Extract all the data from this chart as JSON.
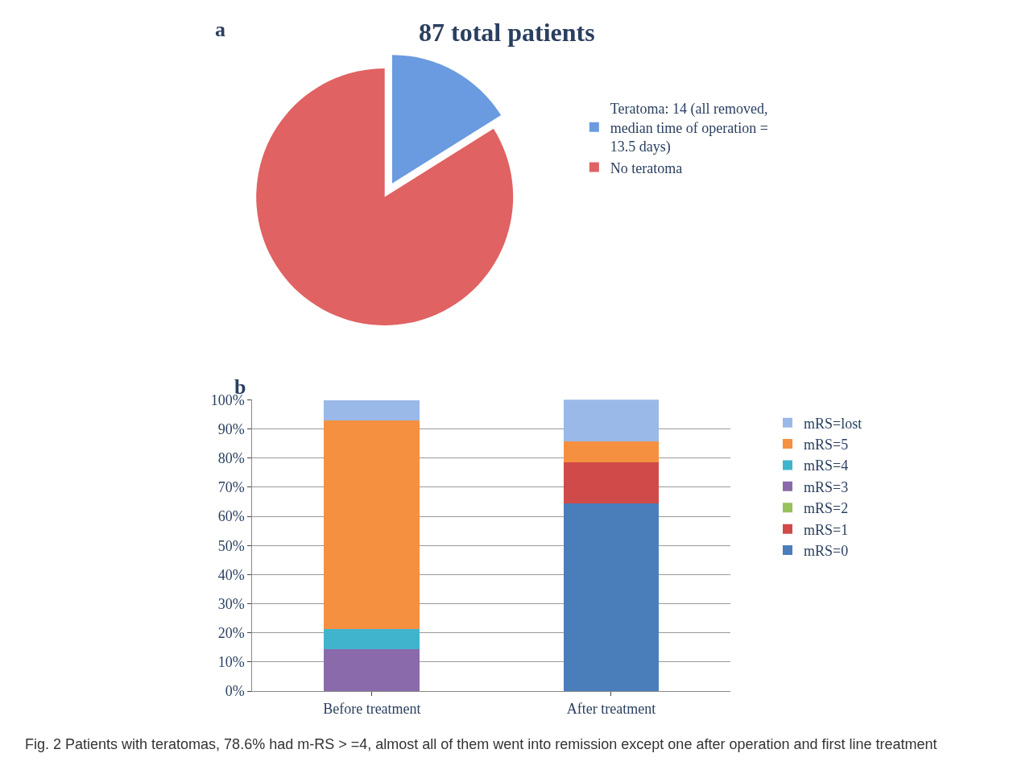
{
  "chart_data": [
    {
      "type": "pie",
      "title": "87 total patients",
      "annotations": [
        "a"
      ],
      "categories": [
        "Teratoma: 14 (all removed, median time of operation = 13.5 days)",
        "No teratoma"
      ],
      "values": [
        16.1,
        83.9
      ],
      "colors": [
        "#6a9be0",
        "#e06262"
      ],
      "legend": "right"
    },
    {
      "type": "bar",
      "stacked": true,
      "annotations": [
        "b",
        "Fig. 2 Patients with teratomas, 78.6% had m-RS > =4, almost all of them went into remission except one after operation and first line treatment"
      ],
      "categories": [
        "Before treatment",
        "After treatment"
      ],
      "series": [
        {
          "name": "mRS=0",
          "color": "#4a7ebb",
          "values": [
            0,
            64.3
          ]
        },
        {
          "name": "mRS=1",
          "color": "#d04a4a",
          "values": [
            0,
            14.3
          ]
        },
        {
          "name": "mRS=2",
          "color": "#98c05c",
          "values": [
            0,
            0
          ]
        },
        {
          "name": "mRS=3",
          "color": "#8a6aaa",
          "values": [
            14.3,
            0
          ]
        },
        {
          "name": "mRS=4",
          "color": "#40b4cc",
          "values": [
            7.1,
            0
          ]
        },
        {
          "name": "mRS=5",
          "color": "#f49040",
          "values": [
            71.4,
            7.1
          ]
        },
        {
          "name": "mRS=lost",
          "color": "#9ab8e8",
          "values": [
            7.1,
            14.3
          ]
        }
      ],
      "ylim": [
        0,
        100
      ],
      "yticks": [
        {
          "value": 0,
          "label": "0%"
        },
        {
          "value": 10,
          "label": "10%"
        },
        {
          "value": 20,
          "label": "20%"
        },
        {
          "value": 30,
          "label": "30%"
        },
        {
          "value": 40,
          "label": "40%"
        },
        {
          "value": 50,
          "label": "50%"
        },
        {
          "value": 60,
          "label": "60%"
        },
        {
          "value": 70,
          "label": "70%"
        },
        {
          "value": 80,
          "label": "80%"
        },
        {
          "value": 90,
          "label": "90%"
        },
        {
          "value": 100,
          "label": "100%"
        }
      ],
      "grid": "y",
      "legend": "right"
    }
  ]
}
